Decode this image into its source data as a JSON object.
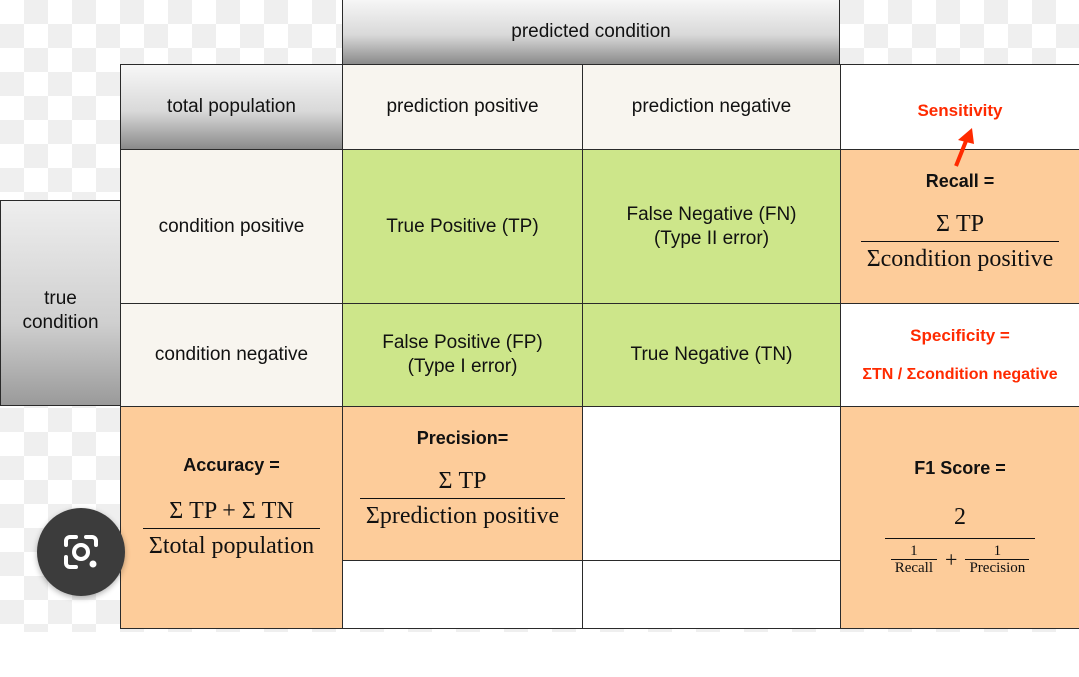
{
  "header": {
    "predicted_condition": "predicted condition"
  },
  "columns": {
    "total_population": "total population",
    "prediction_positive": "prediction positive",
    "prediction_negative": "prediction negative",
    "sensitivity": "Sensitivity"
  },
  "rows": {
    "true_condition_line1": "true",
    "true_condition_line2": "condition",
    "condition_positive": "condition positive",
    "condition_negative": "condition negative"
  },
  "cells": {
    "tp": "True Positive (TP)",
    "fn_line1": "False Negative (FN)",
    "fn_line2": "(Type II error)",
    "fp_line1": "False Positive (FP)",
    "fp_line2": "(Type I error)",
    "tn": "True Negative (TN)"
  },
  "recall": {
    "title": "Recall =",
    "numerator": "Σ TP",
    "denominator": "Σcondition positive"
  },
  "specificity": {
    "title": "Specificity =",
    "formula": "ΣTN / Σcondition negative"
  },
  "accuracy": {
    "title": "Accuracy =",
    "numerator": "Σ TP + Σ TN",
    "denominator": "Σtotal population"
  },
  "precision": {
    "title": "Precision=",
    "numerator": "Σ TP",
    "denominator": "Σprediction positive"
  },
  "f1": {
    "title": "F1 Score =",
    "numerator": "2",
    "term1_num": "1",
    "term1_den": "Recall",
    "plus": "+",
    "term2_num": "1",
    "term2_den": "Precision"
  },
  "icons": {
    "lens": "google-lens-icon"
  },
  "colors": {
    "green": "#cde68a",
    "peach": "#fdcc9a",
    "cream": "#f8f5ef",
    "red": "#ff2a00"
  }
}
